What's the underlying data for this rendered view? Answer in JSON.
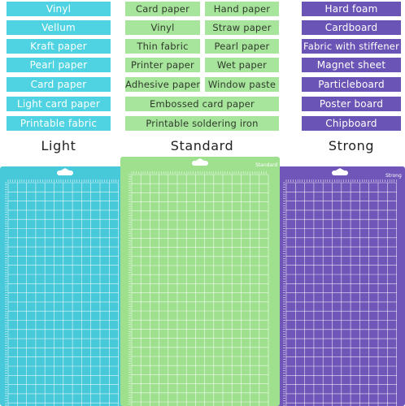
{
  "columns": {
    "light": {
      "items": [
        "Vinyl",
        "Vellum",
        "Kraft paper",
        "Pearl paper",
        "Card paper",
        "Light card paper",
        "Printable fabric"
      ],
      "caption": "Light",
      "color": "#4fd3e2"
    },
    "standard": {
      "left_items": [
        "Card paper",
        "Vinyl",
        "Thin fabric",
        "Printer paper",
        "Adhesive paper"
      ],
      "right_items": [
        "Hand paper",
        "Straw paper",
        "Pearl paper",
        "Wet paper",
        "Window paste"
      ],
      "wide_items": [
        "Embossed card paper",
        "Printable soldering iron"
      ],
      "caption": "Standard",
      "color": "#a8e59c"
    },
    "strong": {
      "items": [
        "Hard foam",
        "Cardboard",
        "Fabric with stiffener",
        "Magnet sheet",
        "Particleboard",
        "Poster board",
        "Chipboard"
      ],
      "caption": "Strong",
      "color": "#6a54b5"
    }
  },
  "mats": {
    "light": {
      "label": "",
      "color": "#48c9d9"
    },
    "standard": {
      "label": "Standard",
      "color": "#9fe08f"
    },
    "strong": {
      "label": "Strong",
      "color": "#6f56b8"
    }
  }
}
